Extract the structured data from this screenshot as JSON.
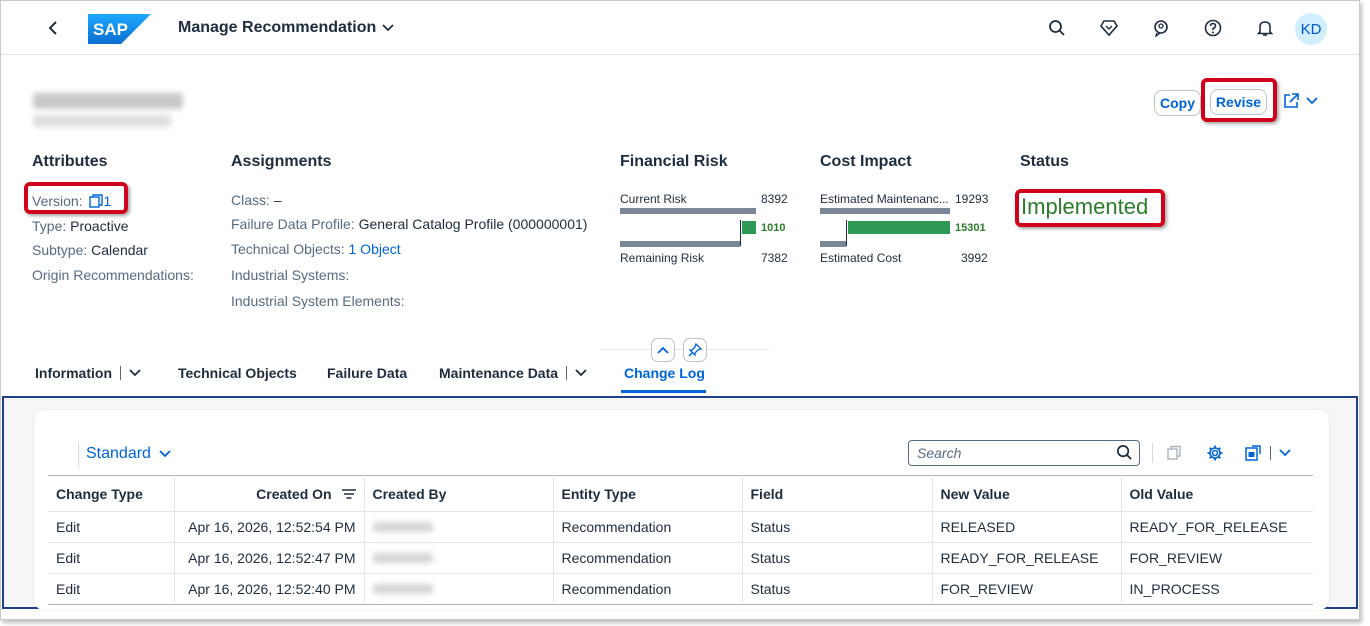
{
  "shell": {
    "logo_text": "SAP",
    "app_title": "Manage Recommendation",
    "avatar_initials": "KD",
    "icons": [
      "search-icon",
      "diamond-icon",
      "assistant-icon",
      "help-icon",
      "bell-icon"
    ]
  },
  "header": {
    "actions": {
      "copy": "Copy",
      "revise": "Revise"
    },
    "attributes": {
      "title": "Attributes",
      "version_label": "Version:",
      "version_value": "1",
      "type_label": "Type:",
      "type_value": "Proactive",
      "subtype_label": "Subtype:",
      "subtype_value": "Calendar",
      "origin_label": "Origin Recommendations:"
    },
    "assignments": {
      "title": "Assignments",
      "class_label": "Class:",
      "class_value": "–",
      "fdp_label": "Failure Data Profile:",
      "fdp_value": "General Catalog Profile (000000001)",
      "tech_label": "Technical Objects:",
      "tech_value": "1 Object",
      "is_label": "Industrial Systems:",
      "ise_label": "Industrial System Elements:"
    },
    "financial_risk": {
      "title": "Financial Risk",
      "current_label": "Current Risk",
      "current_value": "8392",
      "delta_value": "1010",
      "remaining_label": "Remaining Risk",
      "remaining_value": "7382"
    },
    "cost_impact": {
      "title": "Cost Impact",
      "maint_label": "Estimated Maintenanc...",
      "maint_value": "19293",
      "delta_value": "15301",
      "cost_label": "Estimated Cost",
      "cost_value": "3992"
    },
    "status": {
      "title": "Status",
      "value": "Implemented"
    }
  },
  "tabs": [
    {
      "label": "Information",
      "has_menu": true
    },
    {
      "label": "Technical Objects"
    },
    {
      "label": "Failure Data"
    },
    {
      "label": "Maintenance Data",
      "has_menu": true
    },
    {
      "label": "Change Log",
      "active": true
    }
  ],
  "change_log": {
    "variant": "Standard",
    "search_placeholder": "Search",
    "columns": [
      "Change Type",
      "Created On",
      "Created By",
      "Entity Type",
      "Field",
      "New Value",
      "Old Value"
    ],
    "rows": [
      [
        "Edit",
        "Apr 16, 2026, 12:52:54 PM",
        "",
        "Recommendation",
        "Status",
        "RELEASED",
        "READY_FOR_RELEASE"
      ],
      [
        "Edit",
        "Apr 16, 2026, 12:52:47 PM",
        "",
        "Recommendation",
        "Status",
        "READY_FOR_RELEASE",
        "FOR_REVIEW"
      ],
      [
        "Edit",
        "Apr 16, 2026, 12:52:40 PM",
        "",
        "Recommendation",
        "Status",
        "FOR_REVIEW",
        "IN_PROCESS"
      ]
    ]
  },
  "colors": {
    "accent": "#0064d9",
    "status_green": "#2b7d2b",
    "highlight_red": "#d0021b",
    "bar_green": "#2e9a55",
    "bar_grey": "#7a8796"
  }
}
